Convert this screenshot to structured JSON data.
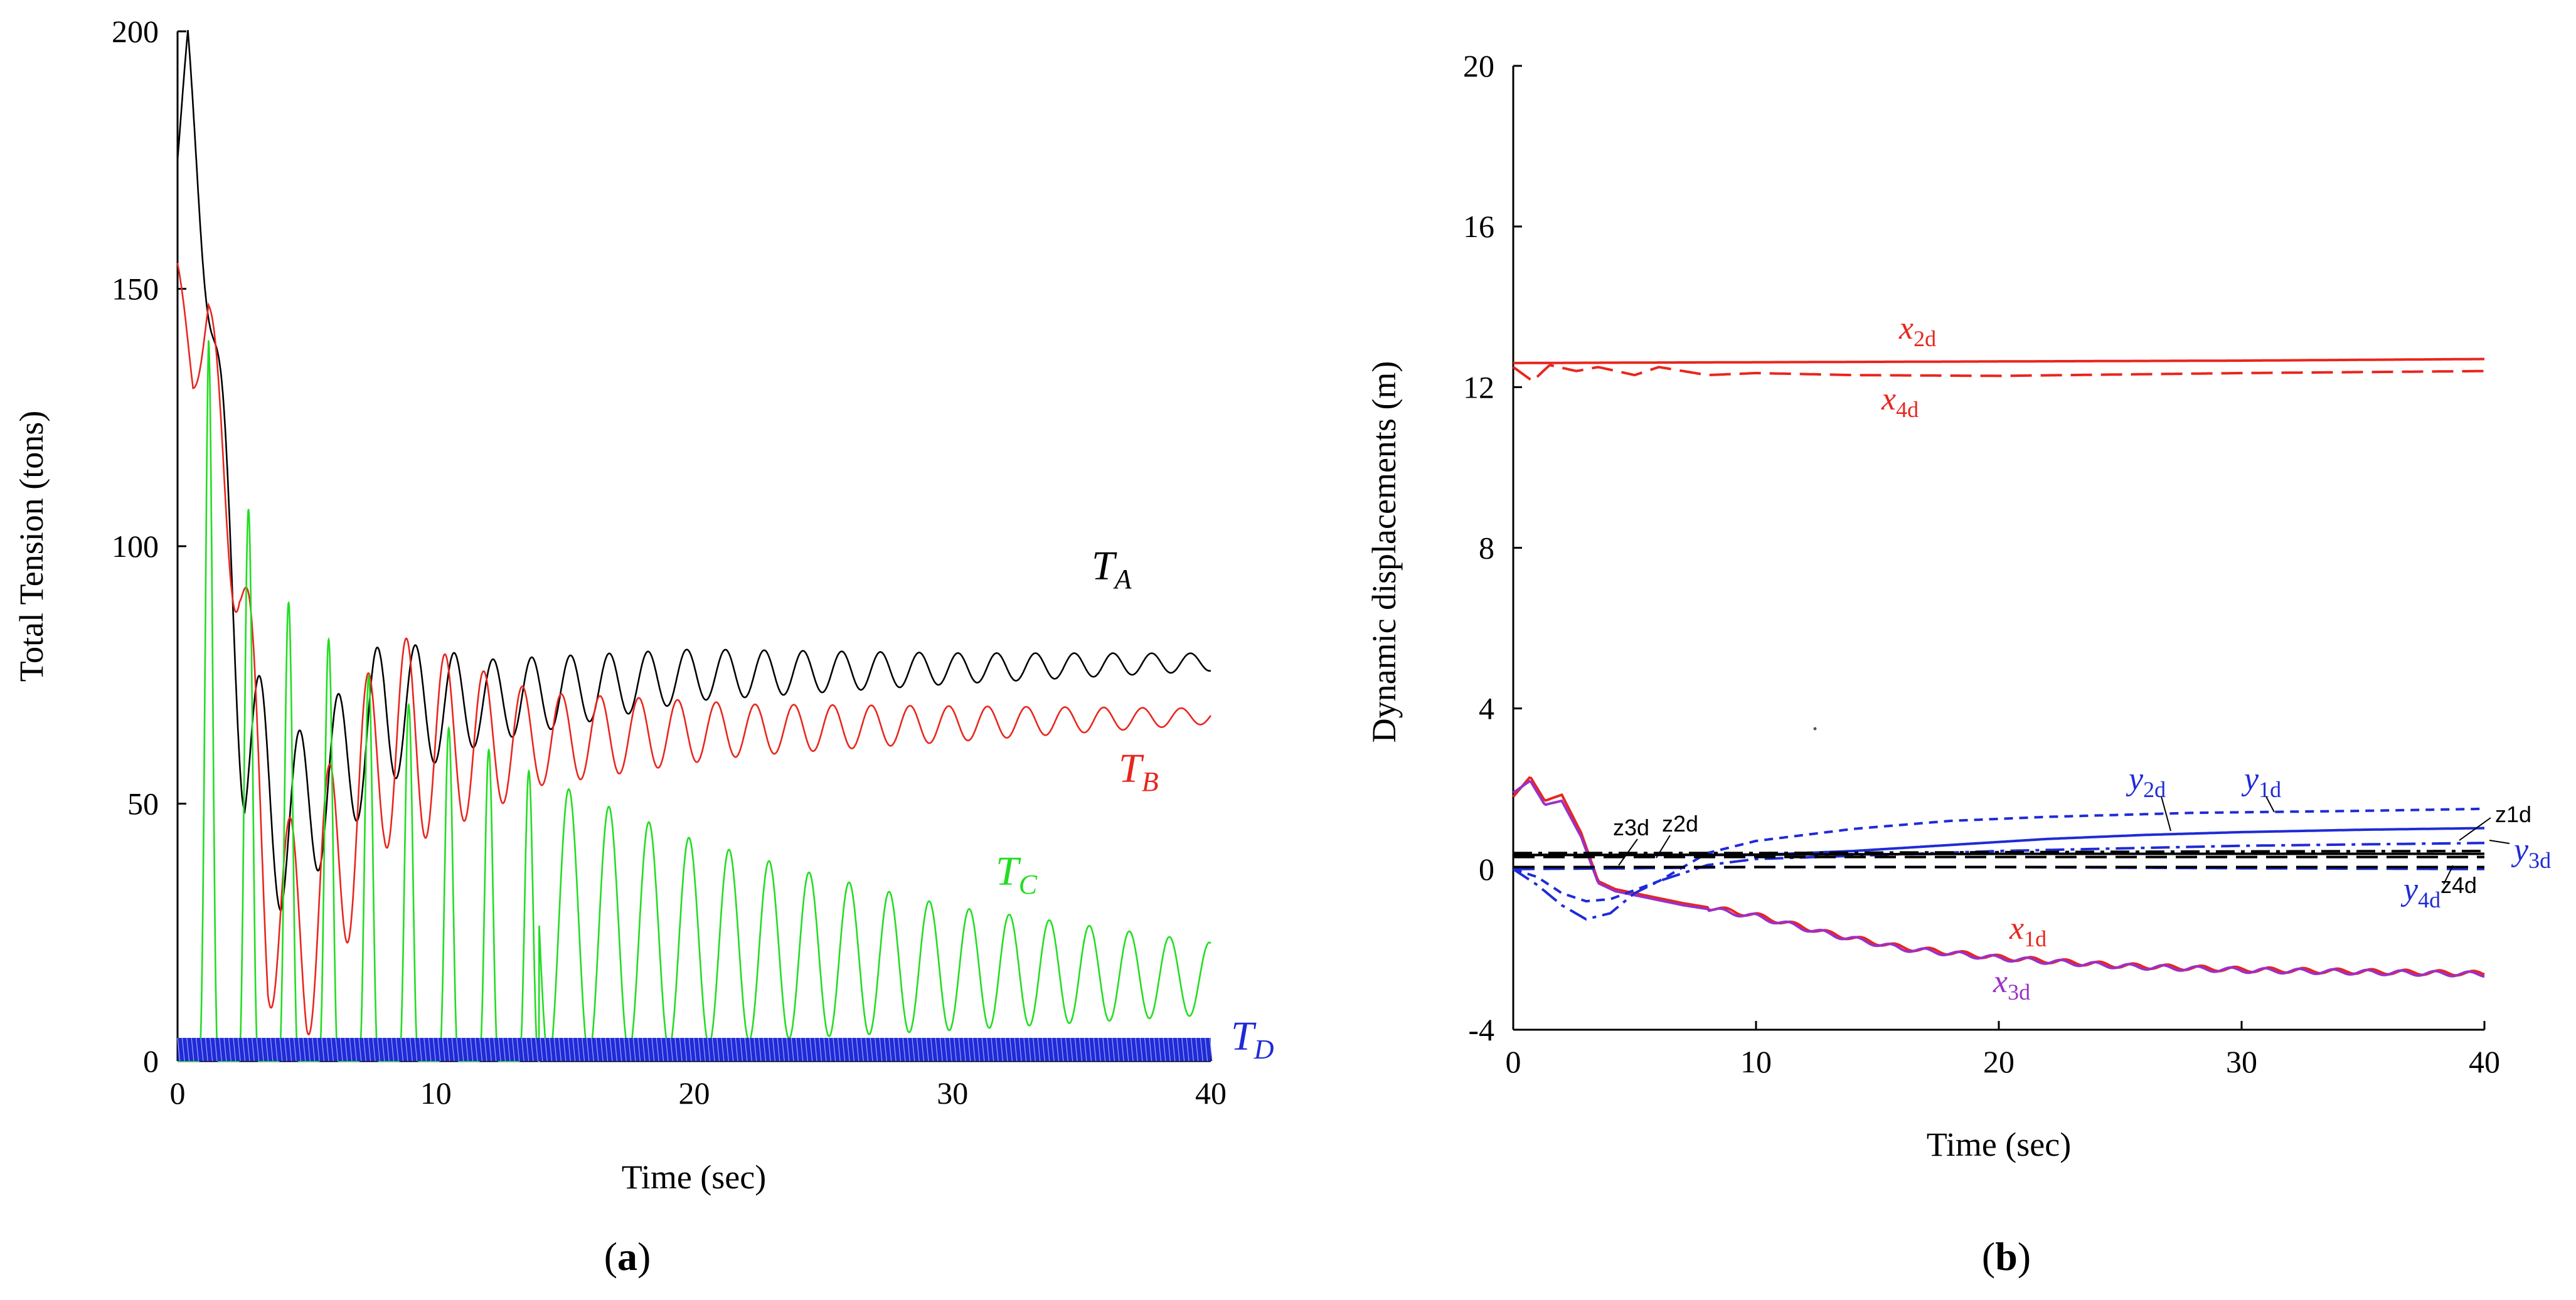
{
  "chart_data": [
    {
      "type": "line",
      "panel_label": "a",
      "title": "",
      "xlabel": "Time (sec)",
      "ylabel": "Total Tension (tons)",
      "xlim": [
        0,
        40
      ],
      "ylim": [
        0,
        200
      ],
      "xticks": [
        0,
        10,
        20,
        30,
        40
      ],
      "yticks": [
        0,
        50,
        100,
        150,
        200
      ],
      "grid": false,
      "series": [
        {
          "name": "T_A",
          "label_main": "T",
          "label_sub": "A",
          "color": "#000000",
          "model": {
            "kind": "damped_cos",
            "base": [
              [
                0,
                175
              ],
              [
                0.4,
                198
              ],
              [
                1.6,
                125
              ],
              [
                2.6,
                65
              ],
              [
                4.0,
                45
              ],
              [
                6.0,
                55
              ],
              [
                8.0,
                68
              ],
              [
                12,
                70
              ],
              [
                20,
                75
              ],
              [
                40,
                77.5
              ]
            ],
            "amp": [
              [
                0,
                0
              ],
              [
                2.5,
                20
              ],
              [
                4,
                16
              ],
              [
                8,
                14
              ],
              [
                12,
                8
              ],
              [
                20,
                5
              ],
              [
                30,
                3
              ],
              [
                40,
                1.7
              ]
            ],
            "period": 1.5,
            "phase": 5.4
          }
        },
        {
          "name": "T_B",
          "label_main": "T",
          "label_sub": "B",
          "color": "#e8261e",
          "model": {
            "kind": "damped_cos",
            "base": [
              [
                0,
                155
              ],
              [
                0.6,
                135
              ],
              [
                1.2,
                140
              ],
              [
                2.4,
                95
              ],
              [
                3.5,
                30
              ],
              [
                5,
                25
              ],
              [
                8,
                62
              ],
              [
                12,
                62
              ],
              [
                20,
                64
              ],
              [
                40,
                67
              ]
            ],
            "amp": [
              [
                0,
                0
              ],
              [
                2.5,
                18
              ],
              [
                6,
                22
              ],
              [
                9,
                20
              ],
              [
                14,
                9
              ],
              [
                22,
                5
              ],
              [
                40,
                1.5
              ]
            ],
            "period": 1.5,
            "phase": 0.6
          }
        },
        {
          "name": "T_C",
          "label_main": "T",
          "label_sub": "C",
          "color": "#22dd22",
          "model": {
            "kind": "rect_cos",
            "peaks": [
              [
                0.4,
                0
              ],
              [
                1.2,
                140
              ],
              [
                2.8,
                106
              ],
              [
                4.3,
                89
              ],
              [
                8,
                72
              ],
              [
                10,
                66
              ],
              [
                13.3,
                57
              ],
              [
                16.4,
                50
              ],
              [
                20,
                43
              ],
              [
                24.9,
                36
              ],
              [
                30,
                30
              ],
              [
                40,
                23
              ]
            ],
            "troughs": [
              [
                0,
                0
              ],
              [
                14,
                0
              ],
              [
                18,
                2
              ],
              [
                22,
                4
              ],
              [
                30,
                6
              ],
              [
                40,
                9
              ]
            ],
            "period": 1.55,
            "first_peak": 1.2
          }
        },
        {
          "name": "T_D",
          "label_main": "T",
          "label_sub": "D",
          "color": "#1f2bd6",
          "model": {
            "kind": "band",
            "low": 0,
            "high": 4.5,
            "period": 0.18
          }
        }
      ]
    },
    {
      "type": "line",
      "panel_label": "b",
      "title": "",
      "xlabel": "Time (sec)",
      "ylabel": "Dynamic displacements (m)",
      "xlim": [
        0,
        40
      ],
      "ylim": [
        -4,
        20
      ],
      "xticks": [
        0,
        10,
        20,
        30,
        40
      ],
      "yticks": [
        -4,
        0,
        4,
        8,
        12,
        16,
        20
      ],
      "grid": false,
      "series": [
        {
          "name": "x2d",
          "label_main": "x",
          "label_sub": "2d",
          "color": "#e8261e",
          "dash": "solid",
          "points": [
            [
              0,
              12.6
            ],
            [
              10,
              12.62
            ],
            [
              20,
              12.64
            ],
            [
              30,
              12.66
            ],
            [
              40,
              12.7
            ]
          ]
        },
        {
          "name": "x4d",
          "label_main": "x",
          "label_sub": "4d",
          "color": "#e8261e",
          "dash": "long-dash",
          "points": [
            [
              0,
              12.5
            ],
            [
              0.8,
              12.15
            ],
            [
              1.5,
              12.55
            ],
            [
              2.6,
              12.4
            ],
            [
              3.5,
              12.5
            ],
            [
              5,
              12.3
            ],
            [
              6,
              12.5
            ],
            [
              8,
              12.3
            ],
            [
              10,
              12.35
            ],
            [
              14,
              12.3
            ],
            [
              20,
              12.28
            ],
            [
              30,
              12.35
            ],
            [
              40,
              12.4
            ]
          ]
        },
        {
          "name": "x1d",
          "label_main": "x",
          "label_sub": "1d",
          "color": "#e8261e",
          "dash": "solid",
          "points": [
            [
              0,
              1.8
            ],
            [
              0.7,
              2.3
            ],
            [
              1.3,
              1.7
            ],
            [
              2.0,
              1.85
            ],
            [
              2.8,
              0.9
            ],
            [
              3.5,
              -0.3
            ],
            [
              4.2,
              -0.5
            ],
            [
              5,
              -0.6
            ],
            [
              7,
              -0.85
            ],
            [
              10,
              -1.15
            ],
            [
              13,
              -1.6
            ],
            [
              16,
              -1.95
            ],
            [
              20,
              -2.2
            ],
            [
              25,
              -2.4
            ],
            [
              30,
              -2.5
            ],
            [
              35,
              -2.55
            ],
            [
              40,
              -2.6
            ]
          ]
        },
        {
          "name": "x3d",
          "label_main": "x",
          "label_sub": "3d",
          "color": "#9b30c8",
          "dash": "solid",
          "points": [
            [
              0,
              1.9
            ],
            [
              0.7,
              2.2
            ],
            [
              1.3,
              1.6
            ],
            [
              2.0,
              1.7
            ],
            [
              2.8,
              0.8
            ],
            [
              3.5,
              -0.35
            ],
            [
              4.2,
              -0.55
            ],
            [
              5,
              -0.65
            ],
            [
              7,
              -0.9
            ],
            [
              10,
              -1.18
            ],
            [
              13,
              -1.62
            ],
            [
              16,
              -1.98
            ],
            [
              20,
              -2.22
            ],
            [
              25,
              -2.42
            ],
            [
              30,
              -2.52
            ],
            [
              35,
              -2.57
            ],
            [
              40,
              -2.62
            ]
          ]
        },
        {
          "name": "y1d",
          "label_main": "y",
          "label_sub": "1d",
          "color": "#1f2bd6",
          "dash": "short-dash",
          "points": [
            [
              0,
              0
            ],
            [
              1,
              -0.2
            ],
            [
              2,
              -0.6
            ],
            [
              3,
              -0.8
            ],
            [
              4,
              -0.75
            ],
            [
              6,
              -0.3
            ],
            [
              8,
              0.4
            ],
            [
              10,
              0.7
            ],
            [
              14,
              1.0
            ],
            [
              18,
              1.2
            ],
            [
              22,
              1.3
            ],
            [
              28,
              1.4
            ],
            [
              35,
              1.45
            ],
            [
              40,
              1.5
            ]
          ]
        },
        {
          "name": "y2d",
          "label_main": "y",
          "label_sub": "2d",
          "color": "#1f2bd6",
          "dash": "solid",
          "points": [
            [
              0,
              0.35
            ],
            [
              5,
              0.35
            ],
            [
              10,
              0.35
            ],
            [
              14,
              0.45
            ],
            [
              18,
              0.6
            ],
            [
              22,
              0.75
            ],
            [
              26,
              0.85
            ],
            [
              30,
              0.92
            ],
            [
              35,
              0.98
            ],
            [
              40,
              1.02
            ]
          ]
        },
        {
          "name": "y3d",
          "label_main": "y",
          "label_sub": "3d",
          "color": "#1f2bd6",
          "dash": "dash-dot",
          "points": [
            [
              0,
              0
            ],
            [
              1,
              -0.4
            ],
            [
              2,
              -0.9
            ],
            [
              3,
              -1.25
            ],
            [
              4,
              -1.1
            ],
            [
              5,
              -0.6
            ],
            [
              6,
              -0.3
            ],
            [
              8,
              0.1
            ],
            [
              10,
              0.25
            ],
            [
              15,
              0.35
            ],
            [
              20,
              0.45
            ],
            [
              30,
              0.58
            ],
            [
              40,
              0.65
            ]
          ]
        },
        {
          "name": "y4d",
          "label_main": "y",
          "label_sub": "4d",
          "color": "#1f2bd6",
          "dash": "long-dash",
          "points": [
            [
              0,
              0
            ],
            [
              5,
              0.02
            ],
            [
              10,
              0.05
            ],
            [
              20,
              0.05
            ],
            [
              30,
              0.02
            ],
            [
              40,
              0
            ]
          ]
        },
        {
          "name": "z1d",
          "label_main": "z1d",
          "label_sub": "",
          "color": "#000000",
          "dash": "dash-dot",
          "points": [
            [
              0,
              0.4
            ],
            [
              10,
              0.4
            ],
            [
              20,
              0.42
            ],
            [
              30,
              0.44
            ],
            [
              40,
              0.45
            ]
          ]
        },
        {
          "name": "z2d",
          "label_main": "z2d",
          "label_sub": "",
          "color": "#000000",
          "dash": "long-dash",
          "points": [
            [
              0,
              0.3
            ],
            [
              10,
              0.3
            ],
            [
              20,
              0.3
            ],
            [
              30,
              0.3
            ],
            [
              40,
              0.3
            ]
          ]
        },
        {
          "name": "z3d",
          "label_main": "z3d",
          "label_sub": "",
          "color": "#000000",
          "dash": "solid",
          "points": [
            [
              0,
              0.35
            ],
            [
              10,
              0.36
            ],
            [
              20,
              0.38
            ],
            [
              30,
              0.38
            ],
            [
              40,
              0.38
            ]
          ]
        },
        {
          "name": "z4d",
          "label_main": "z4d",
          "label_sub": "",
          "color": "#000000",
          "dash": "long-dash",
          "points": [
            [
              0,
              0.05
            ],
            [
              10,
              0.05
            ],
            [
              20,
              0.05
            ],
            [
              30,
              0.05
            ],
            [
              40,
              0.05
            ]
          ]
        }
      ]
    }
  ]
}
